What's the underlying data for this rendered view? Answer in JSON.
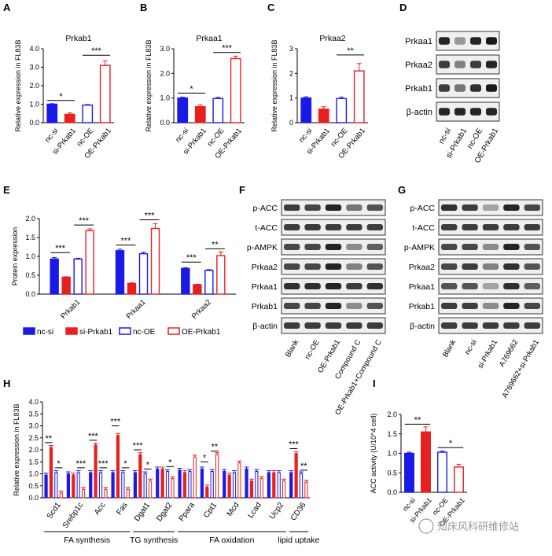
{
  "colors": {
    "blue": "#1a1ae6",
    "red": "#e62020",
    "blue_outline": "#1a1ae6",
    "red_outline": "#e62020",
    "axis": "#000000"
  },
  "chart_data": [
    {
      "panel": "A",
      "type": "bar",
      "title": "Prkab1",
      "ylabel": "Relative expression in FL83B",
      "categories": [
        "nc-si",
        "si-Prkab1",
        "nc-OE",
        "OE-Prkab1"
      ],
      "values": [
        1.0,
        0.45,
        0.95,
        3.1
      ],
      "errors": [
        0.03,
        0.08,
        0.03,
        0.25
      ],
      "ylim": [
        0,
        4
      ],
      "yticks": [
        "0.0",
        "1.0",
        "2.0",
        "3.0",
        "4.0"
      ],
      "sig": [
        {
          "text": "*",
          "from": 0,
          "to": 1,
          "y": 1.2
        },
        {
          "text": "***",
          "from": 2,
          "to": 3,
          "y": 3.65
        }
      ]
    },
    {
      "panel": "B",
      "type": "bar",
      "title": "Prkaa1",
      "ylabel": "Relative expression in FL83B",
      "categories": [
        "nc-si",
        "si-Prkab1",
        "nc-OE",
        "OE-Prkab1"
      ],
      "values": [
        1.0,
        0.65,
        0.98,
        2.6
      ],
      "errors": [
        0.04,
        0.07,
        0.05,
        0.1
      ],
      "ylim": [
        0,
        3
      ],
      "yticks": [
        "0.0",
        "1.0",
        "2.0",
        "3.0"
      ],
      "sig": [
        {
          "text": "*",
          "from": 0,
          "to": 1,
          "y": 1.2
        },
        {
          "text": "***",
          "from": 2,
          "to": 3,
          "y": 2.85
        }
      ]
    },
    {
      "panel": "C",
      "type": "bar",
      "title": "Prkaa2",
      "ylabel": "Relative expression in FL83B",
      "categories": [
        "nc-si",
        "si-Prkab1",
        "nc-OE",
        "OE-Prkab1"
      ],
      "values": [
        1.0,
        0.55,
        0.98,
        2.1
      ],
      "errors": [
        0.05,
        0.1,
        0.06,
        0.3
      ],
      "ylim": [
        0,
        3
      ],
      "yticks": [
        "0",
        "1",
        "2",
        "3"
      ],
      "sig": [
        {
          "text": "**",
          "from": 2,
          "to": 3,
          "y": 2.75
        }
      ]
    },
    {
      "panel": "E",
      "type": "grouped_bar",
      "ylabel": "Protein expression",
      "groups": [
        "Prkab1",
        "Prkaa1",
        "Prkaa2"
      ],
      "series": [
        {
          "name": "nc-si",
          "values": [
            0.93,
            1.15,
            0.68
          ],
          "errors": [
            0.04,
            0.04,
            0.02
          ]
        },
        {
          "name": "si-Prkab1",
          "values": [
            0.45,
            0.28,
            0.25
          ],
          "errors": [
            0.01,
            0.02,
            0.01
          ]
        },
        {
          "name": "nc-OE",
          "values": [
            0.93,
            1.07,
            0.63
          ],
          "errors": [
            0.02,
            0.04,
            0.02
          ]
        },
        {
          "name": "OE-Prkab1",
          "values": [
            1.68,
            1.74,
            1.02
          ],
          "errors": [
            0.05,
            0.13,
            0.1
          ]
        }
      ],
      "ylim": [
        0,
        2
      ],
      "yticks": [
        "0.0",
        "0.5",
        "1.0",
        "1.5",
        "2.0"
      ],
      "sig": [
        {
          "text": "***",
          "group": 0,
          "pair": "si",
          "y": 1.1
        },
        {
          "text": "***",
          "group": 0,
          "pair": "oe",
          "y": 1.83
        },
        {
          "text": "***",
          "group": 1,
          "pair": "si",
          "y": 1.3
        },
        {
          "text": "***",
          "group": 1,
          "pair": "oe",
          "y": 1.97
        },
        {
          "text": "***",
          "group": 2,
          "pair": "si",
          "y": 0.85
        },
        {
          "text": "**",
          "group": 2,
          "pair": "oe",
          "y": 1.2
        }
      ],
      "legend": [
        "nc-si",
        "si-Prkab1",
        "nc-OE",
        "OE-Prkab1"
      ]
    },
    {
      "panel": "H",
      "type": "grouped_bar",
      "ylabel": "Relative expression in FL83B",
      "genes": [
        "Scd1",
        "Srebp1c",
        "Acc",
        "Fas",
        "Dgat1",
        "Dgat2",
        "Ppara",
        "Cpt1",
        "Mcd",
        "Lcad",
        "Ucp2",
        "CD36"
      ],
      "series": [
        {
          "name": "nc-si",
          "values": [
            0.95,
            1.0,
            1.05,
            1.05,
            1.05,
            1.2,
            1.15,
            1.2,
            1.1,
            1.2,
            1.05,
            1.05
          ]
        },
        {
          "name": "si-Prkab1",
          "values": [
            2.1,
            0.95,
            2.2,
            2.6,
            1.8,
            1.2,
            1.05,
            0.45,
            0.95,
            0.7,
            1.05,
            1.85
          ]
        },
        {
          "name": "nc-OE",
          "values": [
            1.05,
            1.05,
            1.05,
            1.05,
            1.0,
            1.1,
            1.1,
            1.1,
            1.05,
            1.1,
            1.05,
            1.0
          ]
        },
        {
          "name": "OE-Prkab1",
          "values": [
            0.2,
            0.35,
            0.35,
            0.35,
            0.7,
            0.8,
            1.7,
            1.8,
            1.45,
            0.8,
            0.7,
            0.65
          ]
        }
      ],
      "ylim": [
        0,
        4
      ],
      "yticks": [
        "0.0",
        "0.5",
        "1.0",
        "1.5",
        "2.0",
        "2.5",
        "3.0",
        "3.5",
        "4.0"
      ],
      "sig": [
        {
          "text": "**",
          "gene": 0,
          "pair": "si",
          "y": 2.3
        },
        {
          "text": "*",
          "gene": 0,
          "pair": "oe",
          "y": 1.25
        },
        {
          "text": "***",
          "gene": 1,
          "pair": "oe",
          "y": 1.25
        },
        {
          "text": "***",
          "gene": 2,
          "pair": "si",
          "y": 2.4
        },
        {
          "text": "***",
          "gene": 2,
          "pair": "oe",
          "y": 1.25
        },
        {
          "text": "***",
          "gene": 3,
          "pair": "si",
          "y": 3.0
        },
        {
          "text": "*",
          "gene": 3,
          "pair": "oe",
          "y": 1.25
        },
        {
          "text": "***",
          "gene": 4,
          "pair": "si",
          "y": 2.0
        },
        {
          "text": "*",
          "gene": 4,
          "pair": "oe",
          "y": 1.2
        },
        {
          "text": "*",
          "gene": 5,
          "pair": "oe",
          "y": 1.3
        },
        {
          "text": "*",
          "gene": 7,
          "pair": "si",
          "y": 1.5
        },
        {
          "text": "**",
          "gene": 7,
          "pair": "oe",
          "y": 1.95
        },
        {
          "text": "***",
          "gene": 11,
          "pair": "si",
          "y": 2.05
        },
        {
          "text": "**",
          "gene": 11,
          "pair": "oe",
          "y": 1.15
        }
      ],
      "categories_groups": [
        {
          "label": "FA synthesis",
          "from": 0,
          "to": 3
        },
        {
          "label": "TG synthesis",
          "from": 4,
          "to": 5
        },
        {
          "label": "FA oxidation",
          "from": 6,
          "to": 10
        },
        {
          "label": "lipid uptake",
          "from": 11,
          "to": 11
        }
      ]
    },
    {
      "panel": "I",
      "type": "bar",
      "ylabel": "ACC activity (U/10^4 cell)",
      "categories": [
        "nc-si",
        "si-Prkab1",
        "nc-OE",
        "OE-Prkab1"
      ],
      "values": [
        1.0,
        1.55,
        1.03,
        0.65
      ],
      "errors": [
        0.03,
        0.13,
        0.03,
        0.07
      ],
      "ylim": [
        0,
        2
      ],
      "yticks": [
        "0.0",
        "0.5",
        "1.0",
        "1.5",
        "2.0"
      ],
      "sig": [
        {
          "text": "**",
          "from": 0,
          "to": 1,
          "y": 1.75
        },
        {
          "text": "*",
          "from": 2,
          "to": 3,
          "y": 1.15
        }
      ]
    }
  ],
  "blots": {
    "D": {
      "rows": [
        "Prkaa1",
        "Prkaa2",
        "Prkab1",
        "β-actin"
      ],
      "lanes": [
        "nc-si",
        "si-Prkab1",
        "nc-OE",
        "OE-Prkab1"
      ]
    },
    "F": {
      "rows": [
        "p-ACC",
        "t-ACC",
        "p-AMPK",
        "Prkaa2",
        "Prkaa1",
        "Prkab1",
        "β-actin"
      ],
      "lanes": [
        "Blank",
        "nc-OE",
        "OE-Prkab1",
        "Compound C",
        "OE-Prkab1+Compound C"
      ]
    },
    "G": {
      "rows": [
        "p-ACC",
        "t-ACC",
        "p-AMPK",
        "Prkaa2",
        "Prkaa1",
        "Prkab1",
        "β-actin"
      ],
      "lanes": [
        "Blank",
        "nc-si",
        "si-Prkab1",
        "A769662",
        "A769662+si-Prkab1"
      ]
    }
  },
  "panel_letters": {
    "A": "A",
    "B": "B",
    "C": "C",
    "D": "D",
    "E": "E",
    "F": "F",
    "G": "G",
    "H": "H",
    "I": "I"
  },
  "watermark": "知床风科研维修站"
}
